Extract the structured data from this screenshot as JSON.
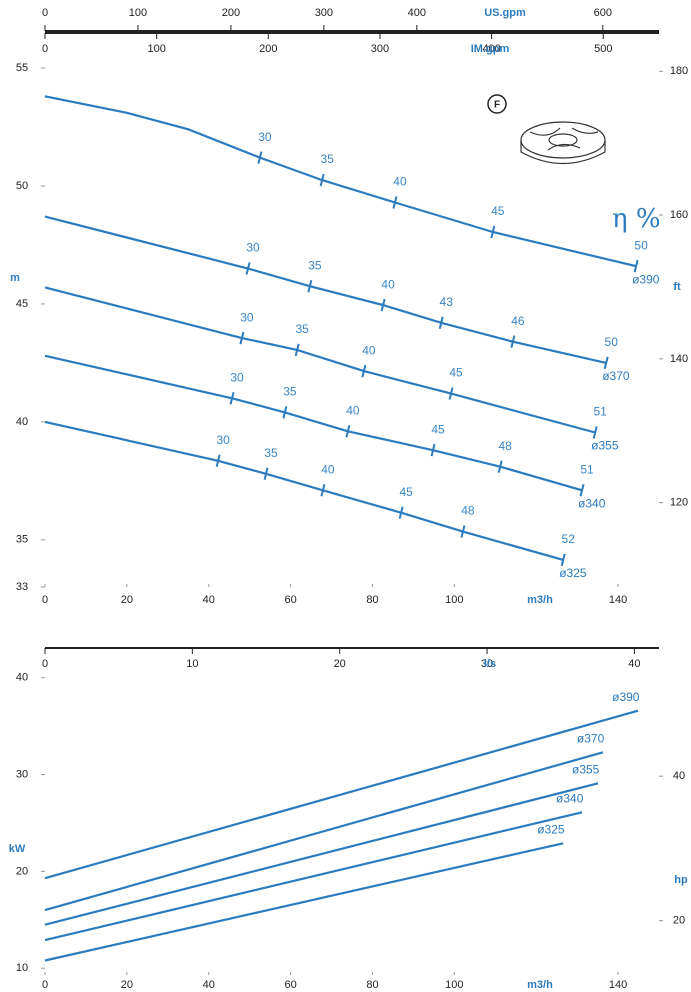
{
  "chart_data": [
    {
      "type": "line",
      "x_label": "m3/h",
      "y_label": "m",
      "y2_label": "ft",
      "annotation": "η %",
      "badge": "F",
      "top_axes": [
        {
          "label": "US.gpm",
          "lim": [
            0,
            660.5
          ],
          "ticks": [
            0,
            100,
            200,
            300,
            400,
            600
          ]
        },
        {
          "label": "IM.gpm",
          "lim": [
            0,
            549.9
          ],
          "ticks": [
            0,
            100,
            200,
            300,
            400,
            500
          ]
        }
      ],
      "xlim": [
        0,
        150
      ],
      "xticks": [
        0,
        20,
        40,
        60,
        80,
        100,
        140
      ],
      "ylim": [
        33,
        55
      ],
      "yticks": [
        55,
        50,
        45,
        40,
        35,
        33
      ],
      "y2lim": [
        108.27,
        180.45
      ],
      "y2ticks": [
        120,
        140,
        160,
        180
      ],
      "grid": false,
      "series": [
        {
          "name": "ø390",
          "color": "#2b7bbf",
          "x": [
            0,
            20,
            35,
            52.5,
            67.7,
            85.5,
            109.4,
            144.4
          ],
          "values": [
            53.8,
            53.1,
            52.4,
            51.2,
            50.25,
            49.3,
            48.05,
            46.6
          ],
          "efficiency": [
            null,
            null,
            null,
            30,
            35,
            40,
            45,
            50
          ]
        },
        {
          "name": "ø370",
          "color": "#2b7bbf",
          "x": [
            0,
            49.6,
            64.7,
            82.6,
            96.8,
            114.3,
            137.1
          ],
          "values": [
            48.7,
            46.5,
            45.75,
            44.95,
            44.2,
            43.4,
            42.5
          ],
          "efficiency": [
            null,
            30,
            35,
            40,
            43,
            46,
            50
          ]
        },
        {
          "name": "ø355",
          "color": "#2b7bbf",
          "x": [
            0,
            48.1,
            61.6,
            77.9,
            99.2,
            134.4
          ],
          "values": [
            45.7,
            43.55,
            43.05,
            42.15,
            41.2,
            39.55
          ],
          "efficiency": [
            null,
            30,
            35,
            40,
            45,
            51
          ]
        },
        {
          "name": "ø340",
          "color": "#2b7bbf",
          "x": [
            0,
            45.7,
            58.6,
            74.0,
            94.8,
            111.2,
            131.2
          ],
          "values": [
            42.8,
            41.0,
            40.4,
            39.6,
            38.8,
            38.1,
            37.1
          ],
          "efficiency": [
            null,
            30,
            35,
            40,
            45,
            48,
            51
          ]
        },
        {
          "name": "ø325",
          "color": "#2b7bbf",
          "x": [
            0,
            42.3,
            54.0,
            67.9,
            87.0,
            102.1,
            126.6
          ],
          "values": [
            40.0,
            38.35,
            37.8,
            37.1,
            36.15,
            35.35,
            34.15
          ],
          "efficiency": [
            null,
            30,
            35,
            40,
            45,
            48,
            52
          ]
        }
      ]
    },
    {
      "type": "line",
      "x_label": "m3/h",
      "y_label": "kW",
      "y2_label": "hp",
      "top_axes": [
        {
          "label": "l/s",
          "lim": [
            0,
            41.67
          ],
          "ticks": [
            0,
            10,
            20,
            30,
            40
          ]
        }
      ],
      "xlim": [
        0,
        150
      ],
      "xticks": [
        0,
        20,
        40,
        60,
        80,
        100,
        140
      ],
      "ylim": [
        9.3,
        40.8
      ],
      "yticks": [
        40,
        30,
        20,
        10
      ],
      "y2lim": [
        12.47,
        54.71
      ],
      "y2ticks": [
        40,
        20
      ],
      "grid": false,
      "series": [
        {
          "name": "ø390",
          "color": "#2b7bbf",
          "x": [
            0,
            144.9
          ],
          "values": [
            19.3,
            36.6
          ]
        },
        {
          "name": "ø370",
          "color": "#2b7bbf",
          "x": [
            0,
            136.3
          ],
          "values": [
            16.0,
            32.3
          ]
        },
        {
          "name": "ø355",
          "color": "#2b7bbf",
          "x": [
            0,
            135.1
          ],
          "values": [
            14.5,
            29.1
          ]
        },
        {
          "name": "ø340",
          "color": "#2b7bbf",
          "x": [
            0,
            131.2
          ],
          "values": [
            12.9,
            26.1
          ]
        },
        {
          "name": "ø325",
          "color": "#2b7bbf",
          "x": [
            0,
            126.6
          ],
          "values": [
            10.8,
            22.9
          ]
        }
      ]
    }
  ]
}
